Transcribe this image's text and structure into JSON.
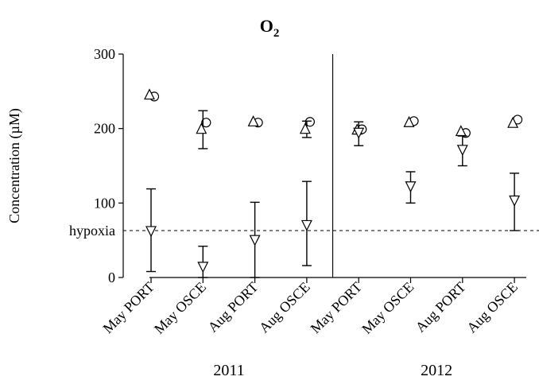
{
  "chart_data": {
    "type": "scatter",
    "title": "O",
    "title_subscript": "2",
    "xlabel": "",
    "ylabel": "Concentration (µM)",
    "ylim": [
      0,
      300
    ],
    "yticks": [
      0,
      100,
      200,
      300
    ],
    "categories": [
      "May PORT",
      "May OSCE",
      "Aug PORT",
      "Aug OSCE",
      "May PORT",
      "May OSCE",
      "Aug PORT",
      "Aug OSCE"
    ],
    "groups": [
      {
        "label": "2011",
        "start": 0,
        "end": 3
      },
      {
        "label": "2012",
        "start": 4,
        "end": 7
      }
    ],
    "series": [
      {
        "marker": "circle",
        "values": [
          243,
          208,
          208,
          209,
          199,
          210,
          194,
          212
        ],
        "err": [
          null,
          null,
          null,
          null,
          null,
          null,
          null,
          null
        ]
      },
      {
        "marker": "triangle-up",
        "values": [
          246,
          200,
          210,
          200,
          199,
          209,
          197,
          208
        ],
        "err": [
          null,
          [
            173,
            224
          ],
          null,
          [
            188,
            210
          ],
          null,
          null,
          null,
          null
        ]
      },
      {
        "marker": "triangle-down",
        "values": [
          62,
          14,
          50,
          70,
          194,
          122,
          171,
          103
        ],
        "err": [
          [
            8,
            119
          ],
          [
            0,
            42
          ],
          [
            0,
            101
          ],
          [
            16,
            129
          ],
          [
            177,
            209
          ],
          [
            100,
            142
          ],
          [
            150,
            190
          ],
          [
            63,
            140
          ]
        ]
      }
    ],
    "reference_line": {
      "label": "hypoxia",
      "value": 63,
      "style": "dashed"
    },
    "divider_after_index": 3,
    "grid": false,
    "legend": false
  }
}
